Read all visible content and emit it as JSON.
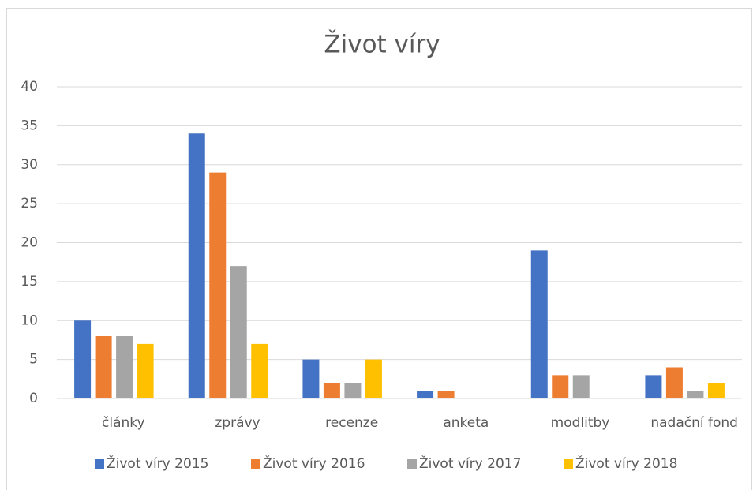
{
  "chart_data": {
    "type": "bar",
    "title": "Život víry",
    "categories": [
      "články",
      "zprávy",
      "recenze",
      "anketa",
      "modlitby",
      "nadační fond"
    ],
    "series": [
      {
        "name": "Život víry 2015",
        "color": "#4472c4",
        "values": [
          10,
          34,
          5,
          1,
          19,
          3
        ]
      },
      {
        "name": "Život víry 2016",
        "color": "#ed7d31",
        "values": [
          8,
          29,
          2,
          1,
          3,
          4
        ]
      },
      {
        "name": "Život víry 2017",
        "color": "#a5a5a5",
        "values": [
          8,
          17,
          2,
          0,
          3,
          1
        ]
      },
      {
        "name": "Život víry 2018",
        "color": "#ffc000",
        "values": [
          7,
          7,
          5,
          0,
          0,
          2
        ]
      }
    ],
    "ylim": [
      0,
      40
    ],
    "yticks": [
      0,
      5,
      10,
      15,
      20,
      25,
      30,
      35,
      40
    ],
    "grid": true,
    "legend": "bottom"
  }
}
